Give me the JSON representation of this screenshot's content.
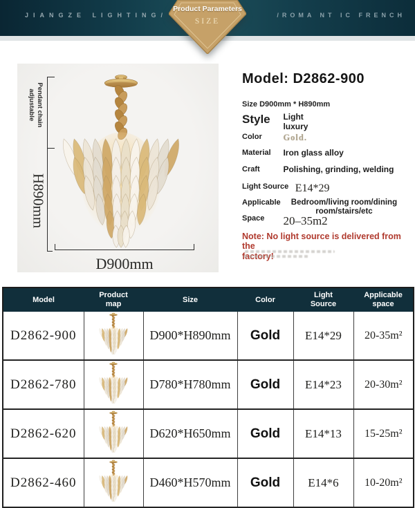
{
  "header": {
    "brand": "JIANGZE LIGHTING/",
    "tagline": "/ROMA NT IC FRENCH",
    "badge_title": "Product Parameters",
    "badge_subtitle": "SIZE"
  },
  "photo": {
    "chain_note_line1": "Pendant chain",
    "chain_note_line2": "adjustable",
    "height_label": "H890mm",
    "diameter_label": "D900mm"
  },
  "details": {
    "model": "Model: D2862-900",
    "size": "Size D900mm * H890mm",
    "style_label": "Style",
    "style_value_line1": "Light",
    "style_value_line2": "luxury",
    "color_label": "Color",
    "color_value": "Gold.",
    "material_label": "Material",
    "material_value": "Iron glass alloy",
    "craft_label": "Craft",
    "craft_value": "Polishing, grinding, welding",
    "light_source_label": "Light Source",
    "light_source_value": "E14*29",
    "applicable_label": "Applicable",
    "applicable_value_line1": "Bedroom/living room/dining",
    "applicable_value_line2": "room/stairs/etc",
    "space_label": "Space",
    "space_value": "20–35m2",
    "note_line1": "Note: No light source is delivered from the",
    "note_line2": "factory!"
  },
  "table": {
    "columns": [
      "Model",
      "Product\nmap",
      "Size",
      "Color",
      "Light\nSource",
      "Applicable\nspace"
    ],
    "rows": [
      {
        "model": "D2862-900",
        "size": "D900*H890mm",
        "color": "Gold",
        "light_source": "E14*29",
        "space": "20-35m²"
      },
      {
        "model": "D2862-780",
        "size": "D780*H780mm",
        "color": "Gold",
        "light_source": "E14*23",
        "space": "20-30m²"
      },
      {
        "model": "D2862-620",
        "size": "D620*H650mm",
        "color": "Gold",
        "light_source": "E14*13",
        "space": "15-25m²"
      },
      {
        "model": "D2862-460",
        "size": "D460*H570mm",
        "color": "Gold",
        "light_source": "E14*6",
        "space": "10-20m²"
      }
    ]
  },
  "colors": {
    "band_dark": "#0b2836",
    "band_light": "#1d4f5a",
    "table_header": "#112f3b",
    "badge_gold": "#c6a168",
    "note_red": "#b03a2e"
  }
}
